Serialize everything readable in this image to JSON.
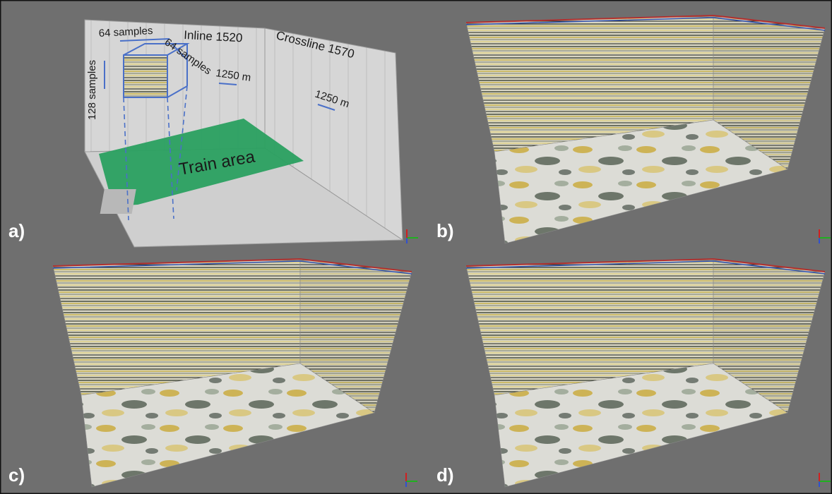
{
  "panels": [
    "a)",
    "b)",
    "c)",
    "d)"
  ],
  "annotations": [
    "64 samples",
    "64 samples",
    "128 samples",
    "Inline 1520",
    "Crossline 1570",
    "1250 m",
    "1250 m",
    "Train area"
  ]
}
